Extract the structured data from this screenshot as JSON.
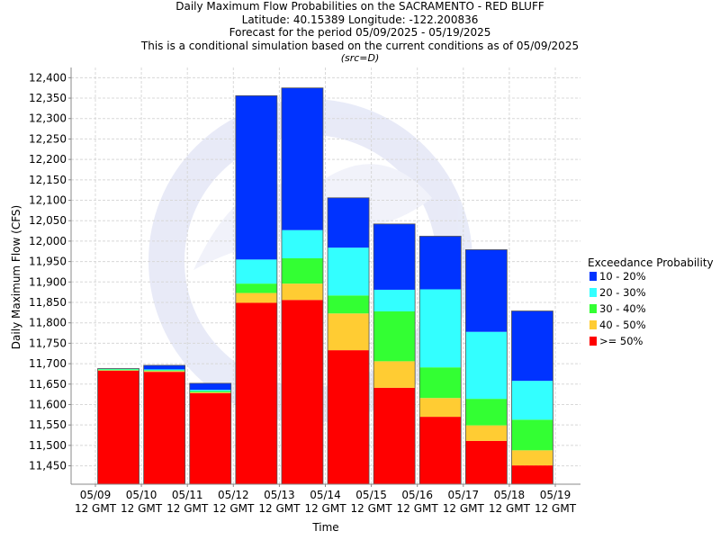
{
  "header": {
    "title_line1": "Daily Maximum Flow Probabilities on the SACRAMENTO - RED BLUFF",
    "title_line2": "Latitude: 40.15389 Longitude: -122.200836",
    "title_line3": "Forecast for the period 05/09/2025 - 05/19/2025",
    "title_line4": "This is a conditional simulation based on the current conditions as of 05/09/2025",
    "src": "(src=D)"
  },
  "colors": {
    "p10_20": "#0033ff",
    "p20_30": "#33ffff",
    "p30_40": "#33ff33",
    "p40_50": "#ffcc33",
    "p50": "#ff0000",
    "grid": "#d8d8d8",
    "axis": "#888888"
  },
  "chart_data": {
    "type": "bar",
    "stacked": true,
    "xlabel": "Time",
    "ylabel": "Daily Maximum Flow (CFS)",
    "ylim": [
      11405,
      12425
    ],
    "y_ticks": [
      "11,450",
      "11,500",
      "11,550",
      "11,600",
      "11,650",
      "11,700",
      "11,750",
      "11,800",
      "11,850",
      "11,900",
      "11,950",
      "12,000",
      "12,050",
      "12,100",
      "12,150",
      "12,200",
      "12,250",
      "12,300",
      "12,350",
      "12,400"
    ],
    "y_tick_values": [
      11450,
      11500,
      11550,
      11600,
      11650,
      11700,
      11750,
      11800,
      11850,
      11900,
      11950,
      12000,
      12050,
      12100,
      12150,
      12200,
      12250,
      12300,
      12350,
      12400
    ],
    "x_ticks": [
      {
        "date": "05/09",
        "time": "12 GMT"
      },
      {
        "date": "05/10",
        "time": "12 GMT"
      },
      {
        "date": "05/11",
        "time": "12 GMT"
      },
      {
        "date": "05/12",
        "time": "12 GMT"
      },
      {
        "date": "05/13",
        "time": "12 GMT"
      },
      {
        "date": "05/14",
        "time": "12 GMT"
      },
      {
        "date": "05/15",
        "time": "12 GMT"
      },
      {
        "date": "05/16",
        "time": "12 GMT"
      },
      {
        "date": "05/17",
        "time": "12 GMT"
      },
      {
        "date": "05/18",
        "time": "12 GMT"
      },
      {
        "date": "05/19",
        "time": "12 GMT"
      }
    ],
    "grid": true,
    "legend": {
      "title": "Exceedance Probability",
      "placement": "right",
      "entries": [
        {
          "label": "10 - 20%",
          "color_key": "p10_20"
        },
        {
          "label": "20 - 30%",
          "color_key": "p20_30"
        },
        {
          "label": "30 - 40%",
          "color_key": "p30_40"
        },
        {
          "label": "40 - 50%",
          "color_key": "p40_50"
        },
        {
          "label": ">= 50%",
          "color_key": "p50"
        }
      ]
    },
    "bars": [
      {
        "day": "05/09",
        "p50": 11683,
        "p40_50": 11684,
        "p30_40": 11686,
        "p20_30": 11687,
        "p10_20": 11688
      },
      {
        "day": "05/10",
        "p50": 11680,
        "p40_50": 11682,
        "p30_40": 11684,
        "p20_30": 11686,
        "p10_20": 11696
      },
      {
        "day": "05/11",
        "p50": 11628,
        "p40_50": 11630,
        "p30_40": 11633,
        "p20_30": 11636,
        "p10_20": 11652
      },
      {
        "day": "05/12",
        "p50": 11849,
        "p40_50": 11873,
        "p30_40": 11896,
        "p20_30": 11955,
        "p10_20": 12356
      },
      {
        "day": "05/13",
        "p50": 11856,
        "p40_50": 11896,
        "p30_40": 11958,
        "p20_30": 12027,
        "p10_20": 12375
      },
      {
        "day": "05/14",
        "p50": 11733,
        "p40_50": 11823,
        "p30_40": 11867,
        "p20_30": 11984,
        "p10_20": 12106
      },
      {
        "day": "05/15",
        "p50": 11641,
        "p40_50": 11706,
        "p30_40": 11828,
        "p20_30": 11881,
        "p10_20": 12042
      },
      {
        "day": "05/16",
        "p50": 11570,
        "p40_50": 11616,
        "p30_40": 11691,
        "p20_30": 11882,
        "p10_20": 12012
      },
      {
        "day": "05/17",
        "p50": 11511,
        "p40_50": 11549,
        "p30_40": 11614,
        "p20_30": 11778,
        "p10_20": 11979
      },
      {
        "day": "05/18",
        "p50": 11451,
        "p40_50": 11488,
        "p30_40": 11563,
        "p20_30": 11658,
        "p10_20": 11829
      }
    ]
  }
}
